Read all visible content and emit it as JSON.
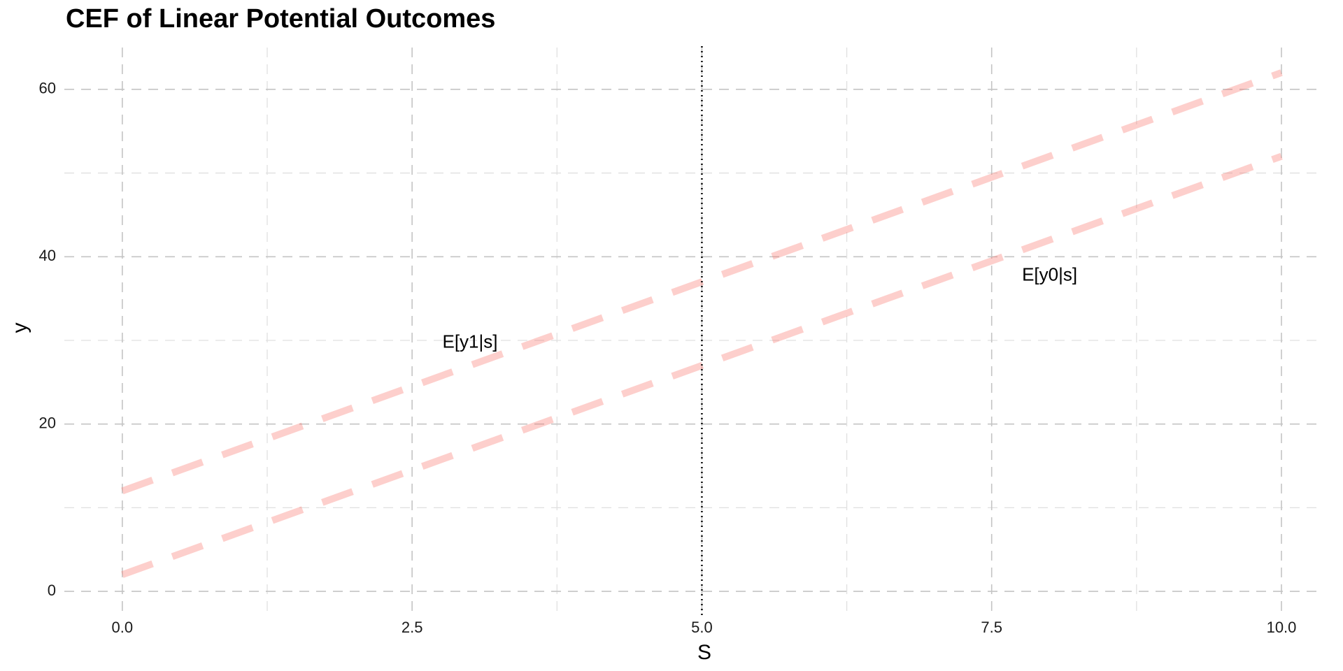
{
  "chart_data": {
    "type": "line",
    "title": "CEF of Linear Potential Outcomes",
    "xlabel": "S",
    "ylabel": "y",
    "xlim": [
      -0.5,
      10.35
    ],
    "ylim": [
      -3,
      65
    ],
    "xticks": [
      0,
      2.5,
      5,
      7.5,
      10
    ],
    "xtick_labels": [
      "0.0",
      "2.5",
      "5.0",
      "7.5",
      "10.0"
    ],
    "yticks": [
      0,
      20,
      40,
      60
    ],
    "ytick_labels": [
      "0",
      "20",
      "40",
      "60"
    ],
    "x_minor_grid": [
      1.25,
      3.75,
      6.25,
      8.75
    ],
    "y_minor_grid": [
      10,
      30,
      50
    ],
    "grid": true,
    "grid_style": "dashed",
    "line_color": "#f8766d",
    "line_opacity": 0.35,
    "line_style": "dashed",
    "series": [
      {
        "x": [
          0,
          10
        ],
        "y": [
          12,
          62
        ],
        "label": "E[y1|s]"
      },
      {
        "x": [
          0,
          10
        ],
        "y": [
          2,
          52
        ],
        "label": "E[y0|s]"
      }
    ],
    "annotations": [
      {
        "text": "E[y1|s]",
        "x": 3,
        "y": 29.7
      },
      {
        "text": "E[y0|s]",
        "x": 8,
        "y": 37.7
      }
    ],
    "vline": {
      "x": 5,
      "style": "dotted",
      "color": "#000000"
    }
  }
}
